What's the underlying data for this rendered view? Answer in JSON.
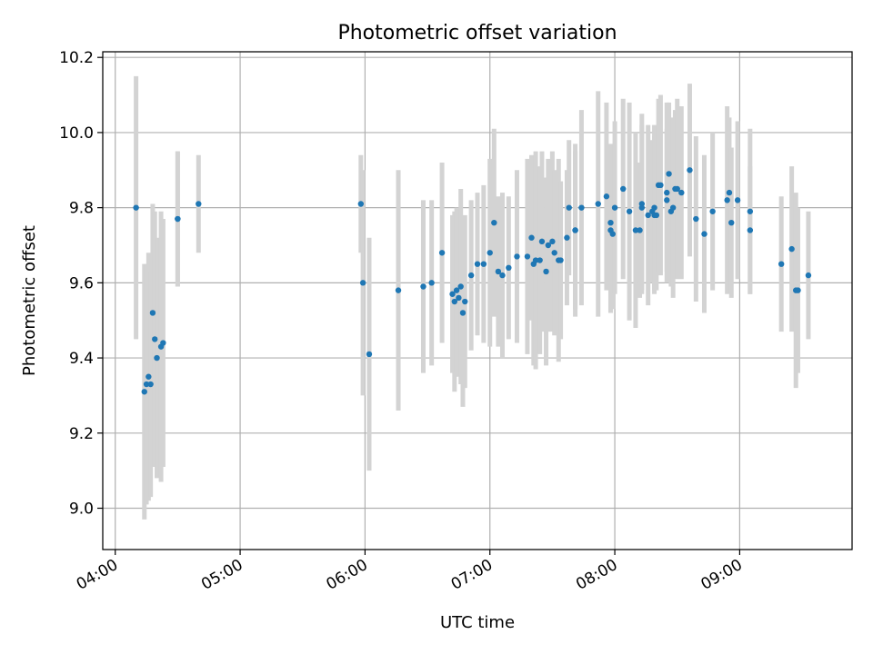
{
  "chart_data": {
    "type": "scatter",
    "title": "Photometric offset variation",
    "xlabel": "UTC time",
    "ylabel": "Photometric offset",
    "xlim": [
      "03:54",
      "09:54"
    ],
    "ylim": [
      8.89,
      10.215
    ],
    "x_ticks": [
      "04:00",
      "05:00",
      "06:00",
      "07:00",
      "08:00",
      "09:00"
    ],
    "y_ticks": [
      "9.0",
      "9.2",
      "9.4",
      "9.6",
      "9.8",
      "10.0",
      "10.2"
    ],
    "grid": true,
    "colors": {
      "points": "#1f77b4",
      "errorbars": "#d3d3d3",
      "grid": "#b0b0b0"
    },
    "series": [
      {
        "x": [
          "04:10",
          "04:14",
          "04:15",
          "04:16",
          "04:17",
          "04:18",
          "04:19",
          "04:20",
          "04:22",
          "04:23",
          "04:30",
          "04:30",
          "04:40",
          "05:58",
          "05:59",
          "06:02",
          "06:16",
          "06:28",
          "06:32",
          "06:37",
          "06:42",
          "06:43",
          "06:44",
          "06:45",
          "06:46",
          "06:47",
          "06:48",
          "06:51",
          "06:54",
          "06:57",
          "07:00",
          "07:02",
          "07:04",
          "07:06",
          "07:09",
          "07:13",
          "07:18",
          "07:20",
          "07:21",
          "07:22",
          "07:24",
          "07:25",
          "07:27",
          "07:28",
          "07:30",
          "07:31",
          "07:33",
          "07:34",
          "07:37",
          "07:38",
          "07:41",
          "07:41",
          "07:44",
          "07:52",
          "07:56",
          "07:58",
          "07:58",
          "07:59",
          "08:00",
          "08:04",
          "08:07",
          "08:10",
          "08:12",
          "08:13",
          "08:13",
          "08:16",
          "08:18",
          "08:19",
          "08:19",
          "08:20",
          "08:21",
          "08:22",
          "08:25",
          "08:25",
          "08:26",
          "08:27",
          "08:28",
          "08:29",
          "08:30",
          "08:32",
          "08:36",
          "08:39",
          "08:43",
          "08:47",
          "08:54",
          "08:55",
          "08:56",
          "08:59",
          "09:05",
          "09:05",
          "09:20",
          "09:25",
          "09:27",
          "09:28",
          "09:33"
        ],
        "y": [
          9.8,
          9.31,
          9.33,
          9.35,
          9.33,
          9.52,
          9.45,
          9.4,
          9.43,
          9.44,
          9.77,
          9.77,
          9.81,
          9.81,
          9.6,
          9.41,
          9.58,
          9.59,
          9.6,
          9.68,
          9.57,
          9.55,
          9.58,
          9.56,
          9.59,
          9.52,
          9.55,
          9.62,
          9.65,
          9.65,
          9.68,
          9.76,
          9.63,
          9.62,
          9.64,
          9.67,
          9.67,
          9.72,
          9.65,
          9.66,
          9.66,
          9.71,
          9.63,
          9.7,
          9.71,
          9.68,
          9.66,
          9.66,
          9.72,
          9.8,
          9.74,
          9.74,
          9.8,
          9.81,
          9.83,
          9.74,
          9.76,
          9.73,
          9.8,
          9.85,
          9.79,
          9.74,
          9.74,
          9.81,
          9.8,
          9.78,
          9.79,
          9.78,
          9.8,
          9.78,
          9.86,
          9.86,
          9.82,
          9.84,
          9.89,
          9.79,
          9.8,
          9.85,
          9.85,
          9.84,
          9.9,
          9.77,
          9.73,
          9.79,
          9.82,
          9.84,
          9.76,
          9.82,
          9.79,
          9.74,
          9.65,
          9.69,
          9.58,
          9.58,
          9.62
        ],
        "err": [
          0.35,
          0.34,
          0.32,
          0.33,
          0.3,
          0.29,
          0.34,
          0.32,
          0.36,
          0.33,
          0.18,
          0.18,
          0.13,
          0.13,
          0.3,
          0.31,
          0.32,
          0.23,
          0.22,
          0.24,
          0.21,
          0.24,
          0.22,
          0.21,
          0.26,
          0.25,
          0.23,
          0.2,
          0.19,
          0.21,
          0.25,
          0.25,
          0.2,
          0.22,
          0.19,
          0.23,
          0.26,
          0.22,
          0.27,
          0.29,
          0.25,
          0.24,
          0.25,
          0.23,
          0.24,
          0.22,
          0.27,
          0.21,
          0.18,
          0.18,
          0.23,
          0.21,
          0.26,
          0.3,
          0.25,
          0.22,
          0.21,
          0.2,
          0.23,
          0.24,
          0.29,
          0.26,
          0.18,
          0.24,
          0.22,
          0.24,
          0.19,
          0.21,
          0.22,
          0.2,
          0.23,
          0.24,
          0.19,
          0.24,
          0.19,
          0.2,
          0.24,
          0.21,
          0.24,
          0.23,
          0.23,
          0.22,
          0.21,
          0.21,
          0.25,
          0.2,
          0.2,
          0.21,
          0.22,
          0.17,
          0.18,
          0.22,
          0.26,
          0.22,
          0.17
        ]
      }
    ]
  }
}
